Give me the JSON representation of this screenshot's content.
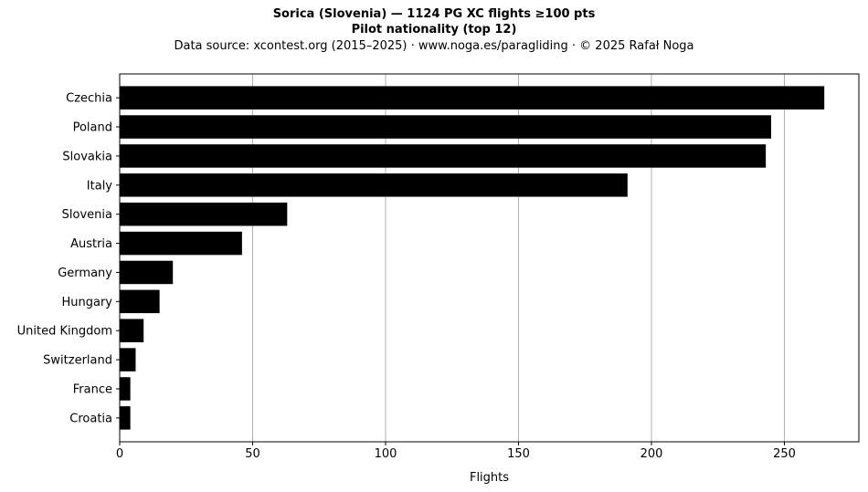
{
  "chart_data": {
    "type": "bar",
    "orientation": "horizontal",
    "title": "Sorica (Slovenia)  —  1124 PG XC flights ≥100 pts",
    "subtitle": "Pilot nationality (top 12)",
    "source_note": "Data source: xcontest.org (2015–2025)  ·  www.noga.es/paragliding  ·  © 2025 Rafał Noga",
    "xlabel": "Flights",
    "ylabel": "",
    "categories": [
      "Czechia",
      "Poland",
      "Slovakia",
      "Italy",
      "Slovenia",
      "Austria",
      "Germany",
      "Hungary",
      "United Kingdom",
      "Switzerland",
      "France",
      "Croatia"
    ],
    "values": [
      265,
      245,
      243,
      191,
      63,
      46,
      20,
      15,
      9,
      6,
      4,
      4
    ],
    "xlim": [
      0,
      278
    ],
    "xticks": [
      0,
      50,
      100,
      150,
      200,
      250
    ],
    "grid": "vertical",
    "bar_color": "#000000",
    "grid_color": "#b0b0b0"
  }
}
